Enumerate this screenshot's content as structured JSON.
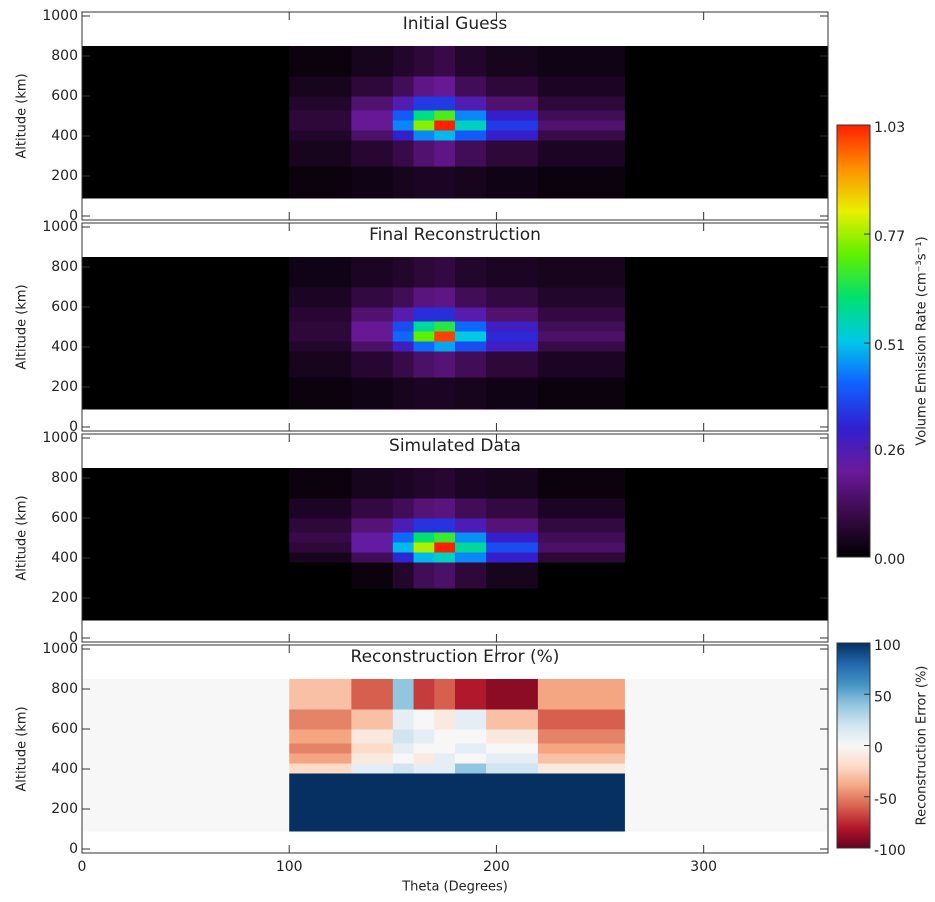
{
  "chart_data": [
    {
      "type": "heatmap",
      "title": "Initial Guess",
      "y_label": "Altitude (km)",
      "xlim": [
        0,
        360
      ],
      "ylim": [
        -20,
        1020
      ],
      "yticks": [
        0,
        200,
        400,
        600,
        800,
        1000
      ],
      "x_edges": [
        0,
        100,
        130,
        150,
        160,
        170,
        180,
        195,
        220,
        262,
        360
      ],
      "y_edges": [
        90,
        250,
        380,
        430,
        480,
        530,
        600,
        700,
        850
      ],
      "values": [
        [
          0,
          0.02,
          0.03,
          0.04,
          0.05,
          0.05,
          0.04,
          0.03,
          0.02,
          0
        ],
        [
          0,
          0.04,
          0.07,
          0.1,
          0.15,
          0.18,
          0.12,
          0.08,
          0.05,
          0
        ],
        [
          0,
          0.06,
          0.14,
          0.3,
          0.45,
          0.5,
          0.4,
          0.3,
          0.1,
          0
        ],
        [
          0,
          0.08,
          0.2,
          0.45,
          0.75,
          1.03,
          0.55,
          0.35,
          0.15,
          0
        ],
        [
          0,
          0.08,
          0.2,
          0.4,
          0.6,
          0.7,
          0.45,
          0.3,
          0.12,
          0
        ],
        [
          0,
          0.06,
          0.15,
          0.25,
          0.35,
          0.35,
          0.25,
          0.15,
          0.08,
          0
        ],
        [
          0,
          0.04,
          0.08,
          0.12,
          0.18,
          0.2,
          0.12,
          0.08,
          0.05,
          0
        ],
        [
          0,
          0.02,
          0.04,
          0.06,
          0.08,
          0.1,
          0.06,
          0.04,
          0.03,
          0
        ]
      ],
      "clim": [
        0,
        1.03
      ],
      "colormap": [
        "#000000",
        "#3a0a4a",
        "#6a1a9a",
        "#3020d0",
        "#1060ff",
        "#00c8e8",
        "#00e070",
        "#60f000",
        "#e8f000",
        "#ff9000",
        "#ff2000"
      ],
      "colorbar": {
        "label": "Volume Emission Rate (cm⁻³s⁻¹)",
        "ticks": [
          {
            "value": 0,
            "label": "0.00"
          },
          0.26,
          0.51,
          0.77,
          1.03
        ]
      }
    },
    {
      "type": "heatmap",
      "title": "Final Reconstruction",
      "y_label": "Altitude (km)",
      "xlim": [
        0,
        360
      ],
      "ylim": [
        -20,
        1020
      ],
      "yticks": [
        0,
        200,
        400,
        600,
        800,
        1000
      ],
      "x_edges": [
        0,
        100,
        130,
        150,
        160,
        170,
        180,
        195,
        220,
        262,
        360
      ],
      "y_edges": [
        90,
        250,
        380,
        430,
        480,
        530,
        600,
        700,
        850
      ],
      "values": [
        [
          0,
          0.02,
          0.03,
          0.04,
          0.05,
          0.05,
          0.04,
          0.03,
          0.02,
          0
        ],
        [
          0,
          0.04,
          0.07,
          0.1,
          0.14,
          0.16,
          0.12,
          0.08,
          0.05,
          0
        ],
        [
          0,
          0.06,
          0.14,
          0.28,
          0.42,
          0.48,
          0.38,
          0.28,
          0.1,
          0
        ],
        [
          0,
          0.08,
          0.2,
          0.42,
          0.72,
          1.0,
          0.52,
          0.32,
          0.14,
          0
        ],
        [
          0,
          0.08,
          0.2,
          0.38,
          0.58,
          0.66,
          0.42,
          0.28,
          0.12,
          0
        ],
        [
          0,
          0.07,
          0.15,
          0.24,
          0.33,
          0.33,
          0.24,
          0.15,
          0.09,
          0
        ],
        [
          0,
          0.05,
          0.09,
          0.12,
          0.17,
          0.18,
          0.12,
          0.09,
          0.06,
          0
        ],
        [
          0,
          0.03,
          0.05,
          0.06,
          0.08,
          0.09,
          0.06,
          0.05,
          0.04,
          0
        ]
      ],
      "clim": [
        0,
        1.03
      ],
      "colormap": [
        "#000000",
        "#3a0a4a",
        "#6a1a9a",
        "#3020d0",
        "#1060ff",
        "#00c8e8",
        "#00e070",
        "#60f000",
        "#e8f000",
        "#ff9000",
        "#ff2000"
      ]
    },
    {
      "type": "heatmap",
      "title": "Simulated Data",
      "y_label": "Altitude (km)",
      "xlim": [
        0,
        360
      ],
      "ylim": [
        -20,
        1020
      ],
      "yticks": [
        0,
        200,
        400,
        600,
        800,
        1000
      ],
      "x_edges": [
        0,
        100,
        130,
        150,
        160,
        170,
        180,
        195,
        220,
        262,
        360
      ],
      "y_edges": [
        90,
        250,
        380,
        430,
        480,
        530,
        600,
        700,
        850
      ],
      "values": [
        [
          0,
          0,
          0,
          0,
          0,
          0,
          0,
          0,
          0,
          0
        ],
        [
          0,
          0,
          0.02,
          0.06,
          0.12,
          0.14,
          0.08,
          0.04,
          0,
          0
        ],
        [
          0,
          0.04,
          0.12,
          0.32,
          0.5,
          0.55,
          0.45,
          0.3,
          0.08,
          0
        ],
        [
          0,
          0.08,
          0.22,
          0.5,
          0.78,
          1.03,
          0.58,
          0.38,
          0.14,
          0
        ],
        [
          0,
          0.1,
          0.22,
          0.42,
          0.62,
          0.68,
          0.46,
          0.3,
          0.12,
          0
        ],
        [
          0,
          0.08,
          0.16,
          0.26,
          0.34,
          0.34,
          0.26,
          0.16,
          0.09,
          0
        ],
        [
          0,
          0.05,
          0.09,
          0.12,
          0.16,
          0.17,
          0.12,
          0.09,
          0.05,
          0
        ],
        [
          0,
          0.02,
          0.04,
          0.05,
          0.06,
          0.07,
          0.05,
          0.04,
          0.02,
          0
        ]
      ],
      "clim": [
        0,
        1.03
      ],
      "colormap": [
        "#000000",
        "#3a0a4a",
        "#6a1a9a",
        "#3020d0",
        "#1060ff",
        "#00c8e8",
        "#00e070",
        "#60f000",
        "#e8f000",
        "#ff9000",
        "#ff2000"
      ]
    },
    {
      "type": "heatmap",
      "title": "Reconstruction Error (%)",
      "y_label": "Altitude (km)",
      "x_label": "Theta (Degrees)",
      "xlim": [
        0,
        360
      ],
      "ylim": [
        -20,
        1020
      ],
      "yticks": [
        0,
        200,
        400,
        600,
        800,
        1000
      ],
      "xticks": [
        0,
        100,
        200,
        300
      ],
      "x_edges": [
        0,
        100,
        130,
        150,
        160,
        170,
        180,
        195,
        220,
        262,
        360
      ],
      "y_edges": [
        90,
        250,
        380,
        430,
        480,
        530,
        600,
        700,
        850
      ],
      "values": [
        [
          0,
          100,
          100,
          100,
          100,
          100,
          100,
          100,
          100,
          0
        ],
        [
          0,
          100,
          100,
          100,
          100,
          100,
          100,
          100,
          100,
          0
        ],
        [
          0,
          -20,
          10,
          20,
          10,
          10,
          40,
          20,
          -10,
          0
        ],
        [
          0,
          -40,
          -10,
          0,
          -10,
          10,
          0,
          10,
          -30,
          0
        ],
        [
          0,
          -50,
          -20,
          10,
          0,
          0,
          10,
          0,
          -40,
          0
        ],
        [
          0,
          -40,
          -10,
          20,
          10,
          0,
          0,
          -10,
          -50,
          0
        ],
        [
          0,
          -50,
          -30,
          10,
          0,
          -10,
          10,
          -30,
          -60,
          0
        ],
        [
          0,
          -30,
          -60,
          40,
          -70,
          -60,
          -80,
          -90,
          -40,
          0
        ]
      ],
      "clim": [
        -100,
        100
      ],
      "colormap": [
        "#67001f",
        "#b2182b",
        "#d6604d",
        "#f4a582",
        "#fddbc7",
        "#f7f7f7",
        "#d1e5f0",
        "#92c5de",
        "#4393c3",
        "#2166ac",
        "#053061"
      ],
      "colorbar": {
        "label": "Reconstruction Error (%)",
        "ticks": [
          -100,
          -50,
          0,
          50,
          100
        ]
      }
    }
  ]
}
